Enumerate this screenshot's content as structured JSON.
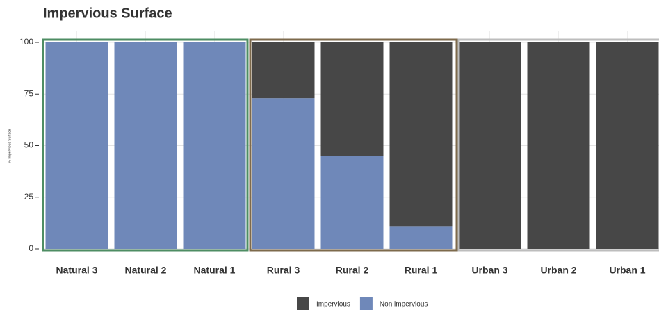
{
  "chart_data": {
    "type": "stacked_bar",
    "title": "Impervious Surface",
    "y_label": "% Impervious Surface",
    "categories": [
      "Natural 3",
      "Natural 2",
      "Natural 1",
      "Rural 3",
      "Rural 2",
      "Rural 1",
      "Urban 3",
      "Urban 2",
      "Urban 1"
    ],
    "series": [
      {
        "name": "Impervious",
        "color": "#474747",
        "values": [
          0,
          0,
          0,
          27,
          55,
          89,
          100,
          100,
          100
        ]
      },
      {
        "name": "Non impervious",
        "color": "#6f88b9",
        "values": [
          100,
          100,
          100,
          73,
          45,
          11,
          0,
          0,
          0
        ]
      }
    ],
    "ylim": [
      0,
      100
    ],
    "yticks": [
      0,
      25,
      50,
      75,
      100
    ],
    "grid": true
  }
}
